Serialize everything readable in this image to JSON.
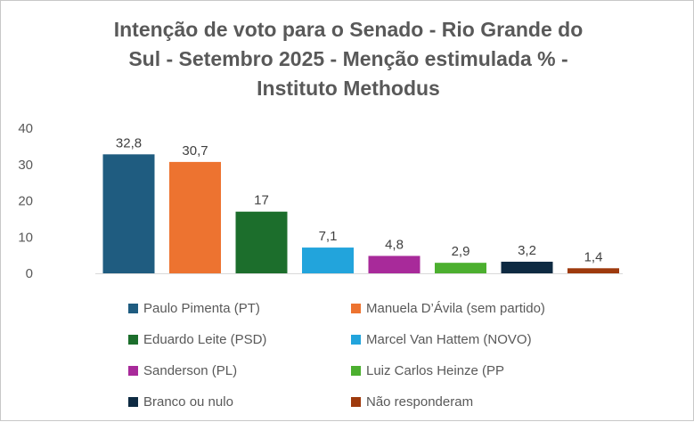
{
  "chart_data": {
    "type": "bar",
    "title": "Intenção de voto para o Senado - Rio Grande do Sul - Setembro 2025 - Menção estimulada % - Instituto Methodus",
    "title_lines": [
      "Intenção de voto para o Senado - Rio Grande do",
      "Sul - Setembro 2025 - Menção estimulada % -",
      "Instituto Methodus"
    ],
    "xlabel": "",
    "ylabel": "",
    "ylim": [
      0,
      40
    ],
    "yticks": [
      0,
      10,
      20,
      30,
      40
    ],
    "grid": false,
    "legend_position": "bottom",
    "series": [
      {
        "name": "Paulo Pimenta (PT)",
        "value": 32.8,
        "label": "32,8",
        "color": "#1f5c80"
      },
      {
        "name": "Manuela D’Ávila (sem partido)",
        "value": 30.7,
        "label": "30,7",
        "color": "#ed7330"
      },
      {
        "name": "Eduardo Leite (PSD)",
        "value": 17,
        "label": "17",
        "color": "#1c6e2c"
      },
      {
        "name": "Marcel Van Hattem (NOVO)",
        "value": 7.1,
        "label": "7,1",
        "color": "#22a4dc"
      },
      {
        "name": "Sanderson (PL)",
        "value": 4.8,
        "label": "4,8",
        "color": "#a82a9a"
      },
      {
        "name": "Luiz Carlos Heinze (PP",
        "value": 2.9,
        "label": "2,9",
        "color": "#4caf2f"
      },
      {
        "name": "Branco ou nulo",
        "value": 3.2,
        "label": "3,2",
        "color": "#0e2a42"
      },
      {
        "name": "Não responderam",
        "value": 1.4,
        "label": "1,4",
        "color": "#9e3a0d"
      }
    ]
  }
}
